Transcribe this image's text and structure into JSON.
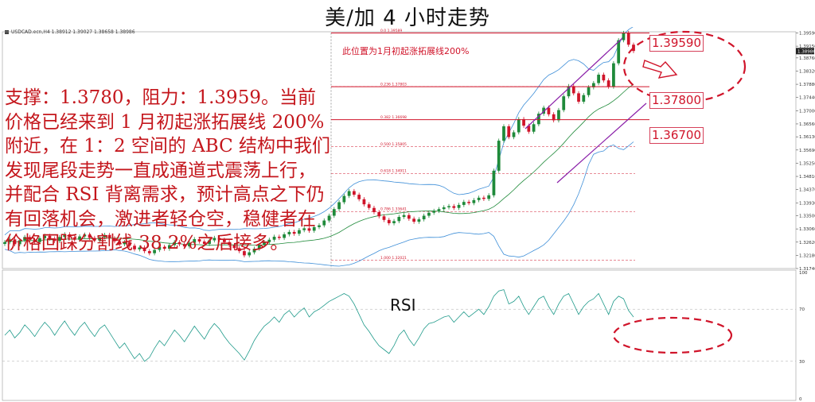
{
  "title": "美/加 4 小时走势",
  "symbol_header": "USDCAD.ecn,H4 1.38912 1.39027 1.38658 1.38986",
  "fib_note": "此位置为1月初起涨拓展线200%",
  "analysis_text": "支撑：1.3780，阻力：1.3959。当前价格已经来到 1 月初起涨拓展线 200%附近，在 1：2 空间的 ABC 结构中我们发现尾段走势一直成通道式震荡上行，并配合 RSI 背离需求，预计高点之下仍有回落机会，激进者轻仓空，稳健者在价格回踩分割线 38.2%之后接多。",
  "rsi_label": "RSI",
  "price_labels": [
    "1.39590",
    "1.37800",
    "1.36700"
  ],
  "colors": {
    "bull": "#1f8a3a",
    "bear": "#d0142a",
    "annotation": "#d0142a",
    "channel": "#8a1fa8",
    "bollinger_mid": "#1f8a3a",
    "bollinger_band": "#3f8fd8",
    "rsi_line": "#1f9a8a"
  },
  "chart_data": [
    {
      "type": "candlestick",
      "title": "USDCAD.ecn,H4",
      "ylim": [
        1.3174,
        1.3963
      ],
      "y_ticks": [
        "1.39590",
        "1.39150",
        "1.38760",
        "1.38320",
        "1.37880",
        "1.37440",
        "1.37000",
        "1.36560",
        "1.36130",
        "1.35690",
        "1.35250",
        "1.34810",
        "1.34370",
        "1.33930",
        "1.33500",
        "1.33060",
        "1.32620",
        "1.32180",
        "1.31740"
      ],
      "current_price": "1.38986",
      "fib_levels": [
        {
          "label": "0.0",
          "value": "1.39589"
        },
        {
          "label": "0.236",
          "value": "1.37803"
        },
        {
          "label": "0.382",
          "value": "1.36698"
        },
        {
          "label": "0.500",
          "value": "1.35805"
        },
        {
          "label": "0.618",
          "value": "1.34911"
        },
        {
          "label": "0.786",
          "value": "1.33641"
        },
        {
          "label": "1.000",
          "value": "1.32021"
        }
      ],
      "horizontal_lines": [
        1.3959,
        1.378,
        1.367
      ],
      "close_series": [
        1.3262,
        1.3271,
        1.3255,
        1.3268,
        1.3279,
        1.327,
        1.3262,
        1.3275,
        1.3283,
        1.3274,
        1.3266,
        1.3279,
        1.3288,
        1.3278,
        1.327,
        1.3281,
        1.3287,
        1.3276,
        1.3268,
        1.3278,
        1.3286,
        1.3275,
        1.3265,
        1.3255,
        1.3262,
        1.325,
        1.3238,
        1.3244,
        1.3232,
        1.3225,
        1.3236,
        1.3246,
        1.324,
        1.3252,
        1.3262,
        1.3255,
        1.3248,
        1.326,
        1.3272,
        1.3264,
        1.3256,
        1.3268,
        1.3276,
        1.327,
        1.3262,
        1.3252,
        1.3242,
        1.3232,
        1.3218,
        1.3228,
        1.324,
        1.3252,
        1.3262,
        1.327,
        1.328,
        1.3276,
        1.3288,
        1.3296,
        1.329,
        1.3302,
        1.3308,
        1.33,
        1.3312,
        1.3318,
        1.3334,
        1.335,
        1.3372,
        1.3395,
        1.3416,
        1.3432,
        1.342,
        1.3405,
        1.3388,
        1.3376,
        1.3362,
        1.3348,
        1.3336,
        1.3325,
        1.3332,
        1.3346,
        1.3352,
        1.334,
        1.333,
        1.3338,
        1.335,
        1.336,
        1.3366,
        1.3372,
        1.3378,
        1.3382,
        1.3376,
        1.3386,
        1.3396,
        1.3392,
        1.3402,
        1.341,
        1.3406,
        1.3418,
        1.35,
        1.36,
        1.3648,
        1.3612,
        1.3628,
        1.3672,
        1.365,
        1.363,
        1.3655,
        1.369,
        1.371,
        1.3688,
        1.3668,
        1.3702,
        1.3748,
        1.3782,
        1.3758,
        1.373,
        1.3752,
        1.3778,
        1.3792,
        1.382,
        1.3801,
        1.378,
        1.3858,
        1.3935,
        1.3959,
        1.392,
        1.3899
      ],
      "rsi": {
        "ylim": [
          0,
          100
        ],
        "levels": [
          30,
          70
        ],
        "values": [
          50,
          54,
          48,
          52,
          58,
          54,
          49,
          55,
          60,
          56,
          50,
          56,
          61,
          55,
          50,
          56,
          60,
          54,
          49,
          55,
          58,
          52,
          46,
          40,
          44,
          38,
          32,
          36,
          30,
          33,
          40,
          46,
          42,
          48,
          54,
          50,
          45,
          51,
          57,
          52,
          47,
          54,
          59,
          55,
          49,
          44,
          40,
          36,
          31,
          38,
          46,
          52,
          57,
          60,
          64,
          60,
          66,
          69,
          64,
          68,
          71,
          64,
          68,
          70,
          73,
          76,
          78,
          80,
          82,
          80,
          74,
          66,
          58,
          53,
          47,
          42,
          39,
          36,
          42,
          50,
          54,
          47,
          42,
          48,
          55,
          59,
          60,
          62,
          64,
          65,
          60,
          64,
          68,
          64,
          67,
          70,
          66,
          72,
          80,
          84,
          85,
          74,
          76,
          80,
          72,
          66,
          72,
          78,
          80,
          72,
          66,
          74,
          80,
          82,
          74,
          66,
          72,
          76,
          78,
          82,
          74,
          66,
          76,
          80,
          78,
          69,
          64
        ]
      }
    }
  ]
}
